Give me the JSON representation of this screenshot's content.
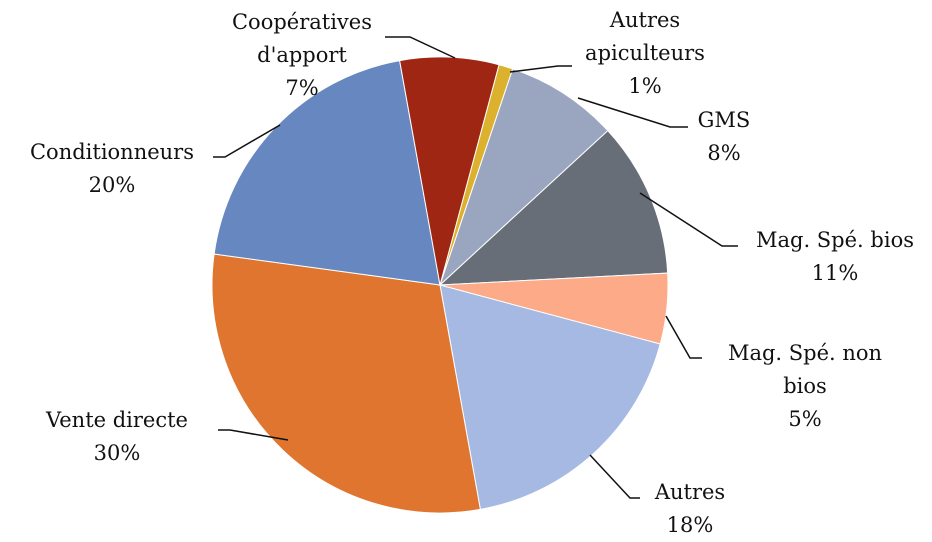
{
  "chart_data": {
    "type": "pie",
    "categories": [
      "Autres apiculteurs",
      "GMS",
      "Mag. Spé. bios",
      "Mag. Spé. non bios",
      "Autres",
      "Vente directe",
      "Conditionneurs",
      "Coopératives d'apport"
    ],
    "values": [
      1,
      8,
      11,
      5,
      18,
      30,
      20,
      7
    ],
    "value_labels": [
      "1%",
      "8%",
      "11%",
      "5%",
      "18%",
      "30%",
      "20%",
      "7%"
    ],
    "colors": [
      "#dcb12e",
      "#9aa5bf",
      "#686e78",
      "#fcaa88",
      "#a6b9e2",
      "#e07530",
      "#6687c0",
      "#9e2613"
    ]
  }
}
